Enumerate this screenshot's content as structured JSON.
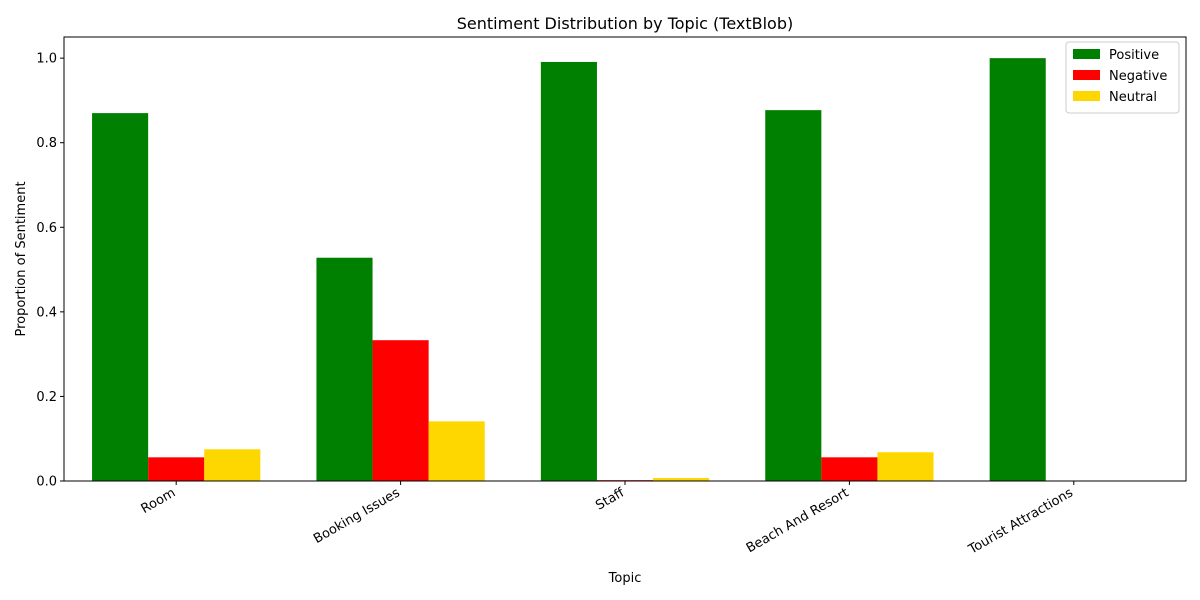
{
  "chart_data": {
    "type": "bar",
    "title": "Sentiment Distribution by Topic (TextBlob)",
    "xlabel": "Topic",
    "ylabel": "Proportion of Sentiment",
    "categories": [
      "Room",
      "Booking Issues",
      "Staff",
      "Beach And Resort",
      "Tourist Attractions"
    ],
    "series": [
      {
        "name": "Positive",
        "color": "#008000",
        "values": [
          0.87,
          0.528,
          0.991,
          0.877,
          1.0
        ]
      },
      {
        "name": "Negative",
        "color": "#ff0000",
        "values": [
          0.056,
          0.333,
          0.002,
          0.056,
          0.0
        ]
      },
      {
        "name": "Neutral",
        "color": "#ffd700",
        "values": [
          0.075,
          0.141,
          0.007,
          0.068,
          0.0
        ]
      }
    ],
    "ylim": [
      0,
      1.05
    ],
    "yticks": [
      0.0,
      0.2,
      0.4,
      0.6,
      0.8,
      1.0
    ],
    "ytick_labels": [
      "0.0",
      "0.2",
      "0.4",
      "0.6",
      "0.8",
      "1.0"
    ],
    "grid": false,
    "legend_position": "top-right"
  }
}
